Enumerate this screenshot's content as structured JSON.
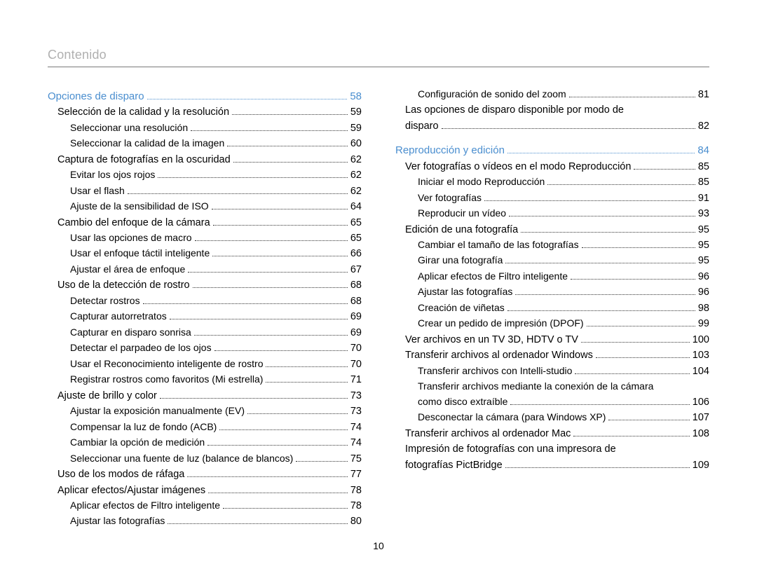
{
  "header": {
    "title": "Contenido"
  },
  "page_number": "10",
  "colors": {
    "section_blue": "#4a8ecf",
    "header_gray": "#b0b0b0",
    "rule_gray": "#7a7a7a",
    "text": "#000000",
    "background": "#ffffff"
  },
  "left_column": [
    {
      "level": 0,
      "label": "Opciones de disparo",
      "page": "58"
    },
    {
      "level": 1,
      "label": "Selección de la calidad y la resolución",
      "page": "59"
    },
    {
      "level": 2,
      "label": "Seleccionar una resolución",
      "page": "59"
    },
    {
      "level": 2,
      "label": "Seleccionar la calidad de la imagen",
      "page": "60"
    },
    {
      "level": 1,
      "label": "Captura de fotografías en la oscuridad",
      "page": "62"
    },
    {
      "level": 2,
      "label": "Evitar los ojos rojos",
      "page": "62"
    },
    {
      "level": 2,
      "label": "Usar el flash",
      "page": "62"
    },
    {
      "level": 2,
      "label": "Ajuste de la sensibilidad de ISO",
      "page": "64"
    },
    {
      "level": 1,
      "label": "Cambio del enfoque de la cámara",
      "page": "65"
    },
    {
      "level": 2,
      "label": "Usar las opciones de macro",
      "page": "65"
    },
    {
      "level": 2,
      "label": "Usar el enfoque táctil inteligente",
      "page": "66"
    },
    {
      "level": 2,
      "label": "Ajustar el área de enfoque",
      "page": "67"
    },
    {
      "level": 1,
      "label": "Uso de la detección de rostro",
      "page": "68"
    },
    {
      "level": 2,
      "label": "Detectar rostros",
      "page": "68"
    },
    {
      "level": 2,
      "label": "Capturar autorretratos",
      "page": "69"
    },
    {
      "level": 2,
      "label": "Capturar en disparo sonrisa",
      "page": "69"
    },
    {
      "level": 2,
      "label": "Detectar el parpadeo de los ojos",
      "page": "70"
    },
    {
      "level": 2,
      "label": "Usar el Reconocimiento inteligente de rostro",
      "page": "70"
    },
    {
      "level": 2,
      "label": "Registrar rostros como favoritos (Mi estrella)",
      "page": "71"
    },
    {
      "level": 1,
      "label": "Ajuste de brillo y color",
      "page": "73"
    },
    {
      "level": 2,
      "label": "Ajustar la exposición manualmente (EV)",
      "page": "73"
    },
    {
      "level": 2,
      "label": "Compensar la luz de fondo (ACB)",
      "page": "74"
    },
    {
      "level": 2,
      "label": "Cambiar la opción de medición",
      "page": "74"
    },
    {
      "level": 2,
      "label": "Seleccionar una fuente de luz (balance de blancos)",
      "page": "75"
    },
    {
      "level": 1,
      "label": "Uso de los modos de ráfaga",
      "page": "77"
    },
    {
      "level": 1,
      "label": "Aplicar efectos/Ajustar imágenes",
      "page": "78"
    },
    {
      "level": 2,
      "label": "Aplicar efectos de Filtro inteligente",
      "page": "78"
    },
    {
      "level": 2,
      "label": "Ajustar las fotografías",
      "page": "80"
    }
  ],
  "right_column": [
    {
      "level": 2,
      "label": "Configuración de sonido del zoom",
      "page": "81"
    },
    {
      "level": 1,
      "wrap": true,
      "label_first": "Las opciones de disparo disponible por modo de",
      "label_rest": "disparo",
      "page": "82"
    },
    {
      "spacer": true
    },
    {
      "level": 0,
      "label": "Reproducción y edición",
      "page": "84"
    },
    {
      "level": 1,
      "label": "Ver fotografías o vídeos en el modo Reproducción",
      "page": "85"
    },
    {
      "level": 2,
      "label": "Iniciar el modo Reproducción",
      "page": "85"
    },
    {
      "level": 2,
      "label": "Ver fotografías",
      "page": "91"
    },
    {
      "level": 2,
      "label": "Reproducir un vídeo",
      "page": "93"
    },
    {
      "level": 1,
      "label": "Edición de una fotografía",
      "page": "95"
    },
    {
      "level": 2,
      "label": "Cambiar el tamaño de las fotografías",
      "page": "95"
    },
    {
      "level": 2,
      "label": "Girar una fotografía",
      "page": "95"
    },
    {
      "level": 2,
      "label": "Aplicar efectos de Filtro inteligente",
      "page": "96"
    },
    {
      "level": 2,
      "label": "Ajustar las fotografías",
      "page": "96"
    },
    {
      "level": 2,
      "label": "Creación de viñetas",
      "page": "98"
    },
    {
      "level": 2,
      "label": "Crear un pedido de impresión (DPOF)",
      "page": "99"
    },
    {
      "level": 1,
      "label": "Ver archivos en un TV 3D, HDTV o TV",
      "page": "100"
    },
    {
      "level": 1,
      "label": "Transferir archivos al ordenador Windows",
      "page": "103"
    },
    {
      "level": 2,
      "label": "Transferir archivos con Intelli-studio",
      "page": "104"
    },
    {
      "level": 2,
      "wrap": true,
      "label_first": "Transferir archivos mediante la conexión de la cámara",
      "label_rest": "como disco extraíble",
      "page": "106"
    },
    {
      "level": 2,
      "label": "Desconectar la cámara (para Windows XP)",
      "page": "107"
    },
    {
      "level": 1,
      "label": "Transferir archivos al ordenador Mac",
      "page": "108"
    },
    {
      "level": 1,
      "wrap": true,
      "label_first": "Impresión de fotografías con una impresora de",
      "label_rest": "fotografías PictBridge",
      "page": "109"
    }
  ]
}
